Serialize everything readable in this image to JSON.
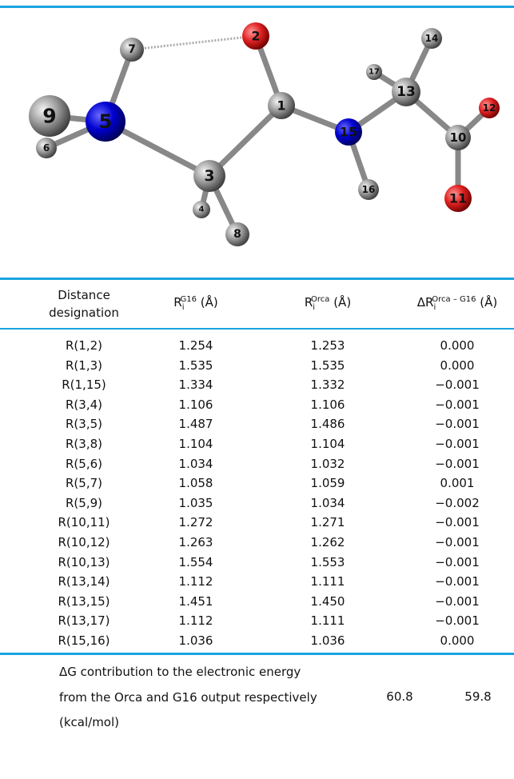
{
  "molecule": {
    "atoms": [
      "1",
      "2",
      "3",
      "4",
      "5",
      "6",
      "7",
      "8",
      "9",
      "10",
      "11",
      "12",
      "13",
      "14",
      "15",
      "16",
      "17"
    ]
  },
  "table": {
    "header": [
      "Distance designation",
      {
        "main": "R",
        "sub": "i",
        "sup": "G16",
        "tail": " (Å)"
      },
      {
        "main": "R",
        "sub": "i",
        "sup": "Orca",
        "tail": " (Å)"
      },
      {
        "main": "ΔR",
        "sub": "i",
        "sup": "Orca – G16",
        "tail": " (Å)"
      }
    ],
    "rows": [
      [
        "R(1,2)",
        "1.254",
        "1.253",
        "0.000"
      ],
      [
        "R(1,3)",
        "1.535",
        "1.535",
        "0.000"
      ],
      [
        "R(1,15)",
        "1.334",
        "1.332",
        "−0.001"
      ],
      [
        "R(3,4)",
        "1.106",
        "1.106",
        "−0.001"
      ],
      [
        "R(3,5)",
        "1.487",
        "1.486",
        "−0.001"
      ],
      [
        "R(3,8)",
        "1.104",
        "1.104",
        "−0.001"
      ],
      [
        "R(5,6)",
        "1.034",
        "1.032",
        "−0.001"
      ],
      [
        "R(5,7)",
        "1.058",
        "1.059",
        "0.001"
      ],
      [
        "R(5,9)",
        "1.035",
        "1.034",
        "−0.002"
      ],
      [
        "R(10,11)",
        "1.272",
        "1.271",
        "−0.001"
      ],
      [
        "R(10,12)",
        "1.263",
        "1.262",
        "−0.001"
      ],
      [
        "R(10,13)",
        "1.554",
        "1.553",
        "−0.001"
      ],
      [
        "R(13,14)",
        "1.112",
        "1.111",
        "−0.001"
      ],
      [
        "R(13,15)",
        "1.451",
        "1.450",
        "−0.001"
      ],
      [
        "R(13,17)",
        "1.112",
        "1.111",
        "−0.001"
      ],
      [
        "R(15,16)",
        "1.036",
        "1.036",
        "0.000"
      ]
    ],
    "footer": {
      "lines": [
        "ΔG contribution to the electronic energy",
        "from the Orca and G16 output respectively",
        "(kcal/mol)"
      ],
      "values": [
        "60.8",
        "59.8"
      ]
    }
  }
}
